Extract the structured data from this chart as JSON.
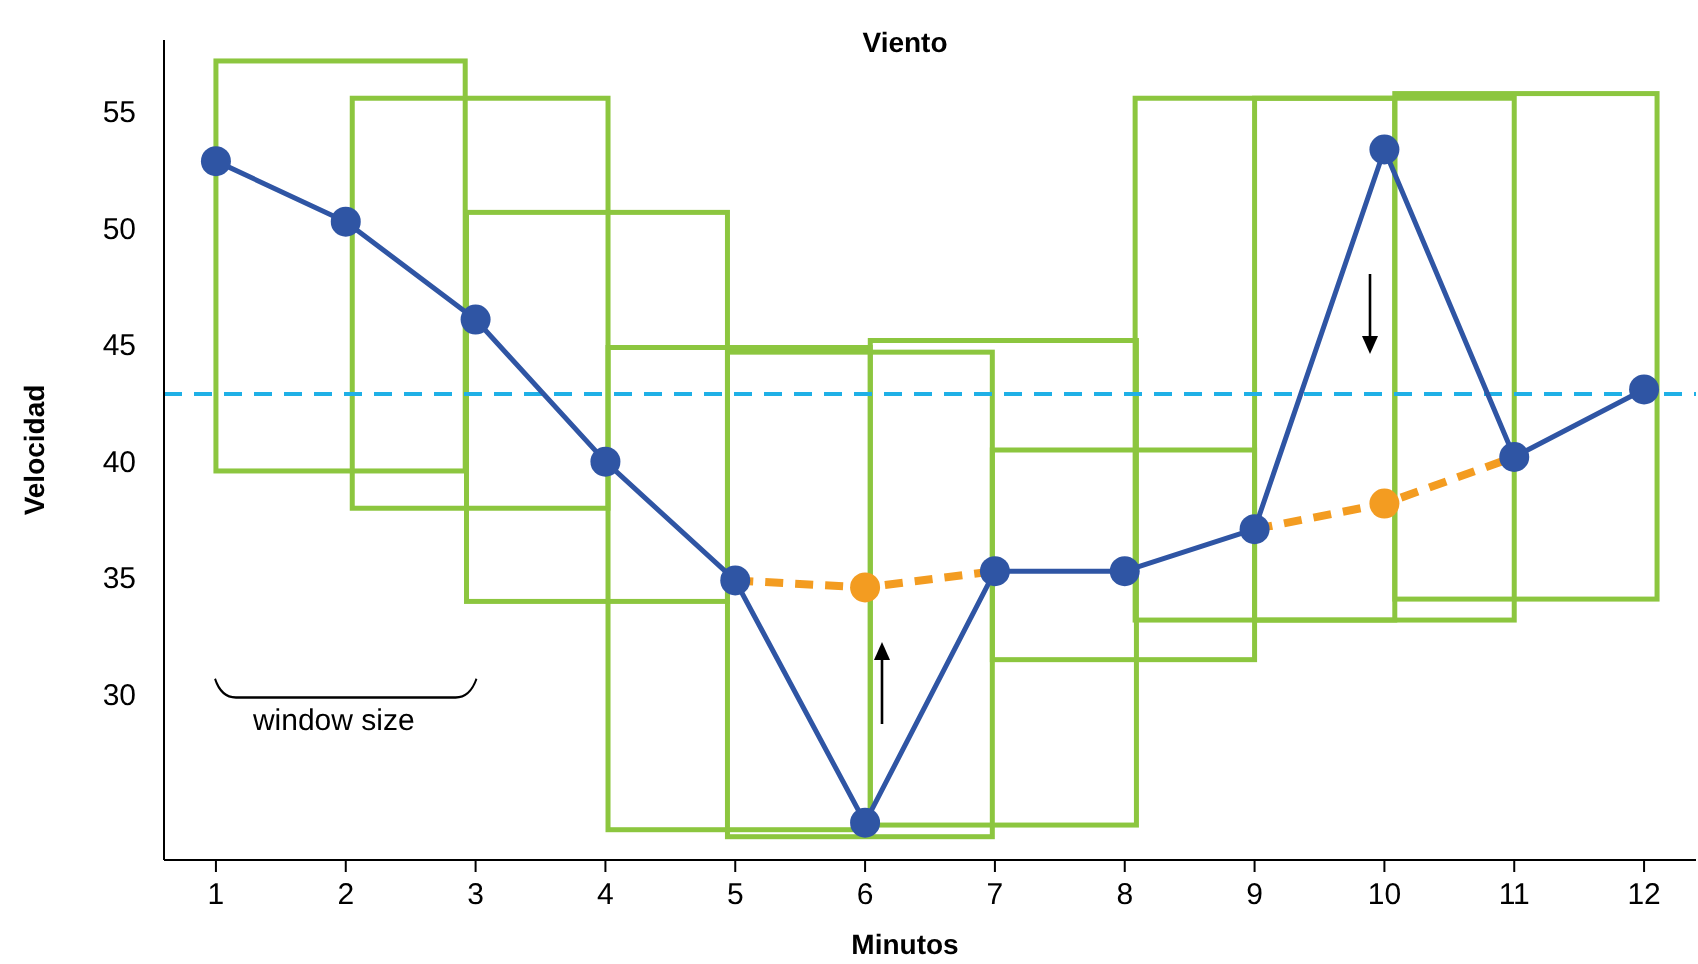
{
  "chart_data": {
    "type": "line",
    "title": "Viento",
    "xlabel": "Minutos",
    "ylabel": "Velocidad",
    "x": [
      1,
      2,
      3,
      4,
      5,
      6,
      7,
      8,
      9,
      10,
      11,
      12
    ],
    "xlim": [
      0.6,
      12.4
    ],
    "xticks": [
      1,
      2,
      3,
      4,
      5,
      6,
      7,
      8,
      9,
      10,
      11,
      12
    ],
    "ylim": [
      22.9,
      58.1
    ],
    "yticks": [
      30,
      35,
      40,
      45,
      50,
      55
    ],
    "grid": false,
    "marker": "circle",
    "series": [
      {
        "color": "#f39c21",
        "type": "line",
        "marker": "none",
        "line_style": "dashed",
        "values": [
          null,
          null,
          null,
          null,
          34.9,
          34.6,
          35.3,
          null,
          37.1,
          38.2,
          40.2,
          null
        ]
      },
      {
        "color": "#2f55a4",
        "type": "line",
        "values": [
          52.9,
          50.3,
          46.1,
          40.0,
          34.9,
          24.5,
          35.3,
          35.3,
          37.1,
          53.4,
          40.2,
          43.1
        ]
      },
      {
        "color": "#f39c21",
        "type": "scatter",
        "values": [
          null,
          null,
          null,
          null,
          null,
          34.6,
          null,
          null,
          null,
          38.2,
          null,
          null
        ]
      }
    ],
    "ref_lines": [
      {
        "axis": "y",
        "value": 42.9,
        "color": "#1fb0e6",
        "line_style": "dashed"
      }
    ],
    "annotations": [
      "window size"
    ]
  }
}
